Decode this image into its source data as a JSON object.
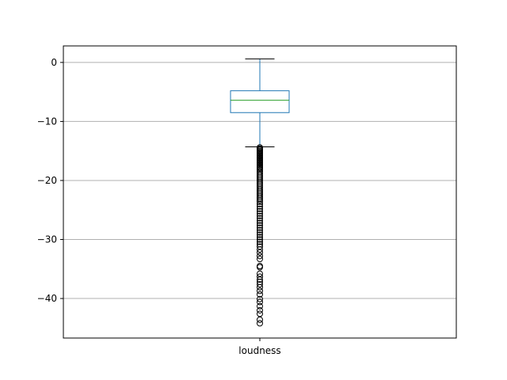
{
  "chart_data": {
    "type": "box",
    "categories": [
      "loudness"
    ],
    "series": [
      {
        "whisker_low": -14.3,
        "q1": -8.5,
        "median": -6.4,
        "q3": -4.8,
        "whisker_high": 0.6,
        "outliers": [
          -14.4,
          -14.6,
          -14.8,
          -15.0,
          -15.2,
          -15.4,
          -15.6,
          -15.8,
          -16.0,
          -16.2,
          -16.4,
          -16.6,
          -16.8,
          -17.0,
          -17.2,
          -17.4,
          -17.6,
          -17.8,
          -18.0,
          -18.2,
          -18.5,
          -18.8,
          -19.1,
          -19.4,
          -19.7,
          -20.0,
          -20.3,
          -20.6,
          -20.9,
          -21.2,
          -21.5,
          -21.8,
          -22.1,
          -22.4,
          -22.7,
          -23.0,
          -23.3,
          -23.6,
          -24.0,
          -24.4,
          -24.8,
          -25.2,
          -25.6,
          -26.0,
          -26.4,
          -26.8,
          -27.2,
          -27.6,
          -28.0,
          -28.4,
          -28.8,
          -29.2,
          -29.6,
          -30.0,
          -30.4,
          -30.8,
          -31.2,
          -31.7,
          -32.2,
          -32.8,
          -33.3,
          -34.5,
          -34.7,
          -35.8,
          -36.3,
          -36.8,
          -37.2,
          -37.6,
          -38.1,
          -38.7,
          -39.3,
          -40.1,
          -40.6,
          -41.3,
          -42.0,
          -42.6,
          -43.6,
          -44.2
        ]
      }
    ],
    "ylim": [
      -46.7,
      2.8
    ],
    "yticks": [
      0,
      -10,
      -20,
      -30,
      -40
    ],
    "ytick_labels": [
      "0",
      "−10",
      "−20",
      "−30",
      "−40"
    ],
    "xtick_labels": [
      "loudness"
    ],
    "grid": "horizontal",
    "colors": {
      "box": "#1f77b4",
      "whisker": "#1f77b4",
      "cap": "#000000",
      "median": "#2ca02c",
      "outlier": "#000000",
      "grid": "#b0b0b0"
    }
  }
}
